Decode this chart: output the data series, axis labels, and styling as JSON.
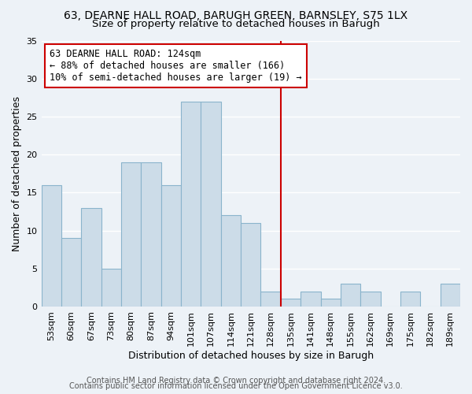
{
  "title": "63, DEARNE HALL ROAD, BARUGH GREEN, BARNSLEY, S75 1LX",
  "subtitle": "Size of property relative to detached houses in Barugh",
  "xlabel": "Distribution of detached houses by size in Barugh",
  "ylabel": "Number of detached properties",
  "bar_labels": [
    "53sqm",
    "60sqm",
    "67sqm",
    "73sqm",
    "80sqm",
    "87sqm",
    "94sqm",
    "101sqm",
    "107sqm",
    "114sqm",
    "121sqm",
    "128sqm",
    "135sqm",
    "141sqm",
    "148sqm",
    "155sqm",
    "162sqm",
    "169sqm",
    "175sqm",
    "182sqm",
    "189sqm"
  ],
  "bar_heights": [
    16,
    9,
    13,
    5,
    19,
    19,
    16,
    27,
    27,
    12,
    11,
    2,
    1,
    2,
    1,
    3,
    2,
    0,
    2,
    0,
    3
  ],
  "bar_color": "#ccdce8",
  "bar_edgecolor": "#8ab4cc",
  "vline_x": 11.5,
  "vline_color": "#cc0000",
  "annotation_text": "63 DEARNE HALL ROAD: 124sqm\n← 88% of detached houses are smaller (166)\n10% of semi-detached houses are larger (19) →",
  "annotation_box_edgecolor": "#cc0000",
  "annotation_box_facecolor": "#ffffff",
  "ylim": [
    0,
    35
  ],
  "yticks": [
    0,
    5,
    10,
    15,
    20,
    25,
    30,
    35
  ],
  "footer1": "Contains HM Land Registry data © Crown copyright and database right 2024.",
  "footer2": "Contains public sector information licensed under the Open Government Licence v3.0.",
  "background_color": "#edf2f7",
  "grid_color": "#ffffff",
  "title_fontsize": 10,
  "subtitle_fontsize": 9.5,
  "axis_label_fontsize": 9,
  "tick_fontsize": 8,
  "annotation_fontsize": 8.5,
  "footer_fontsize": 7
}
